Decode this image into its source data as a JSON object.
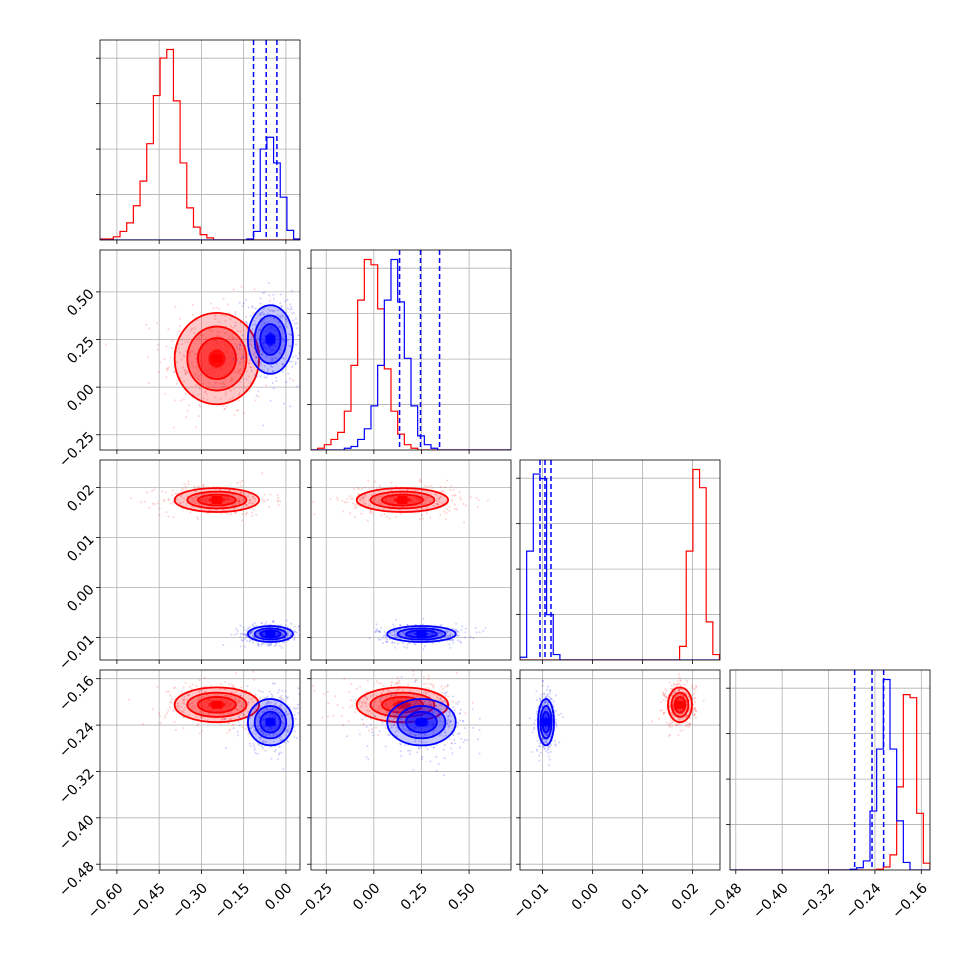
{
  "chart_data": {
    "type": "corner",
    "title": "",
    "parameters": [
      {
        "label": "",
        "range": [
          -0.66,
          0.05
        ],
        "ticks": [
          -0.6,
          -0.45,
          -0.3,
          -0.15,
          0.0
        ],
        "tick_labels": [
          "−0.60",
          "−0.45",
          "−0.30",
          "−0.15",
          "0.00"
        ]
      },
      {
        "label": "",
        "range": [
          -0.33,
          0.72
        ],
        "ticks": [
          -0.25,
          0.0,
          0.25,
          0.5
        ],
        "tick_labels": [
          "−0.25",
          "0.00",
          "0.25",
          "0.50"
        ]
      },
      {
        "label": "",
        "range": [
          -0.0145,
          0.0255
        ],
        "ticks": [
          -0.01,
          0.0,
          0.01,
          0.02
        ],
        "tick_labels": [
          "−0.01",
          "0.00",
          "0.01",
          "0.02"
        ]
      },
      {
        "label": "",
        "range": [
          -0.49,
          -0.145
        ],
        "ticks": [
          -0.48,
          -0.4,
          -0.32,
          -0.24,
          -0.16
        ],
        "tick_labels": [
          "−0.48",
          "−0.40",
          "−0.32",
          "−0.24",
          "−0.16"
        ]
      }
    ],
    "grid": true,
    "series": [
      {
        "color": "#ff0000",
        "mean": [
          -0.245,
          0.15,
          0.0175,
          -0.205
        ],
        "sd": [
          0.075,
          0.12,
          0.0012,
          0.015
        ],
        "hist": [
          {
            "x0": -0.66,
            "bw": 0.0237,
            "counts": [
              1,
              1,
              3,
              8,
              16,
              32,
              55,
              90,
              135,
              170,
              178,
              130,
              72,
              30,
              12,
              5,
              2,
              0,
              0,
              0,
              0,
              0,
              0,
              0,
              0,
              0,
              0,
              0,
              0,
              0
            ]
          },
          {
            "x0": -0.33,
            "bw": 0.035,
            "counts": [
              0,
              1,
              3,
              6,
              10,
              22,
              48,
              85,
              108,
              105,
              80,
              46,
              22,
              9,
              3,
              1,
              0,
              0,
              0,
              0,
              0,
              0,
              0,
              0,
              0,
              0,
              0,
              0,
              0,
              0
            ]
          },
          {
            "x0": -0.0145,
            "bw": 0.00133,
            "counts": [
              0,
              0,
              0,
              0,
              0,
              0,
              0,
              0,
              0,
              0,
              0,
              0,
              0,
              0,
              0,
              0,
              0,
              0,
              0,
              0,
              0,
              0,
              0,
              0,
              15,
              120,
              210,
              190,
              42,
              6
            ]
          },
          {
            "x0": -0.49,
            "bw": 0.0115,
            "counts": [
              0,
              0,
              0,
              0,
              0,
              0,
              0,
              0,
              0,
              0,
              0,
              0,
              0,
              0,
              0,
              0,
              0,
              0,
              0,
              0,
              0,
              0,
              1,
              4,
              20,
              110,
              232,
              228,
              75,
              9
            ]
          }
        ]
      },
      {
        "color": "#0000ff",
        "mean": [
          -0.055,
          0.25,
          -0.0093,
          -0.235
        ],
        "sd": [
          0.04,
          0.09,
          0.0008,
          0.02
        ],
        "quantiles": [
          [
            -0.115,
            -0.07,
            -0.032
          ],
          [
            0.135,
            0.245,
            0.345
          ],
          [
            -0.0105,
            -0.0095,
            -0.0083
          ],
          [
            -0.275,
            -0.245,
            -0.225
          ]
        ],
        "hist": [
          {
            "x0": -0.66,
            "bw": 0.0237,
            "counts": [
              0,
              0,
              0,
              0,
              0,
              0,
              0,
              0,
              0,
              0,
              0,
              0,
              0,
              0,
              0,
              0,
              0,
              0,
              0,
              0,
              0,
              0,
              1,
              8,
              85,
              96,
              72,
              40,
              9,
              1
            ]
          },
          {
            "x0": -0.33,
            "bw": 0.035,
            "counts": [
              0,
              0,
              0,
              0,
              0,
              1,
              2,
              6,
              12,
              25,
              48,
              85,
              108,
              84,
              52,
              25,
              8,
              3,
              1,
              0,
              0,
              0,
              0,
              0,
              0,
              0,
              0,
              0,
              0,
              0
            ]
          },
          {
            "x0": -0.0145,
            "bw": 0.00133,
            "counts": [
              3,
              120,
              205,
              200,
              50,
              6,
              0,
              0,
              0,
              0,
              0,
              0,
              0,
              0,
              0,
              0,
              0,
              0,
              0,
              0,
              0,
              0,
              0,
              0,
              0,
              0,
              0,
              0,
              0,
              0
            ]
          },
          {
            "x0": -0.49,
            "bw": 0.0115,
            "counts": [
              0,
              0,
              0,
              0,
              0,
              0,
              0,
              0,
              0,
              0,
              0,
              0,
              0,
              0,
              0,
              0,
              0,
              0,
              1,
              3,
              12,
              78,
              160,
              252,
              160,
              65,
              10,
              0,
              0,
              0
            ]
          }
        ]
      }
    ]
  }
}
